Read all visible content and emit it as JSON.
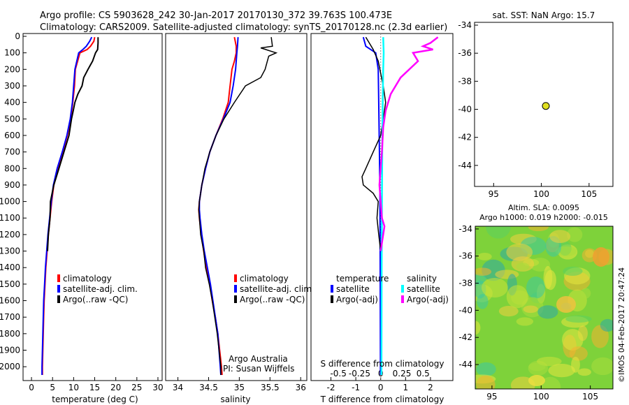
{
  "header": {
    "line1": "Argo profile: CS 5903628_242 30-Jan-2017 20170130_372 39.763S 100.473E",
    "line2": "Climatology: CARS2009. Satellite-adjusted climatology: synTS_20170128.nc (2.3d earlier)"
  },
  "colors": {
    "climatology": "#ff0000",
    "satellite_adj": "#0000ff",
    "argo": "#000000",
    "salinity_satellite": "#00ffff",
    "salinity_argo": "#ff00ff",
    "marker": "#e0e020"
  },
  "depth_ticks": [
    "0",
    "100",
    "200",
    "300",
    "400",
    "500",
    "600",
    "700",
    "800",
    "900",
    "1000",
    "1100",
    "1200",
    "1300",
    "1400",
    "1500",
    "1600",
    "1700",
    "1800",
    "1900",
    "2000"
  ],
  "chart_data": [
    {
      "id": "temperature",
      "type": "line",
      "xlabel": "temperature (deg C)",
      "ylabel": "",
      "xlim": [
        -2,
        31
      ],
      "ylim": [
        0,
        2070
      ],
      "x_ticks": [
        "0",
        "5",
        "10",
        "15",
        "20",
        "25",
        "30"
      ],
      "legend": [
        "climatology",
        "satellite-adj. clim.",
        "Argo(..raw -QC)"
      ],
      "legend_position": "bottom-right",
      "series": [
        {
          "name": "climatology",
          "points": [
            [
              15,
              5
            ],
            [
              14.8,
              30
            ],
            [
              14,
              60
            ],
            [
              13.2,
              80
            ],
            [
              11.5,
              100
            ],
            [
              10.4,
              200
            ],
            [
              10.2,
              300
            ],
            [
              9.8,
              400
            ],
            [
              9.3,
              500
            ],
            [
              8.5,
              600
            ],
            [
              7.4,
              700
            ],
            [
              6.2,
              800
            ],
            [
              5.3,
              900
            ],
            [
              4.8,
              1000
            ],
            [
              4.4,
              1100
            ],
            [
              4.0,
              1200
            ],
            [
              3.7,
              1300
            ],
            [
              3.4,
              1400
            ],
            [
              3.2,
              1500
            ],
            [
              3.0,
              1600
            ],
            [
              2.9,
              1700
            ],
            [
              2.8,
              1800
            ],
            [
              2.7,
              1900
            ],
            [
              2.6,
              2000
            ],
            [
              2.6,
              2050
            ]
          ]
        },
        {
          "name": "satellite-adj. clim.",
          "points": [
            [
              14.3,
              5
            ],
            [
              13.8,
              30
            ],
            [
              13.0,
              60
            ],
            [
              12.2,
              80
            ],
            [
              11.2,
              100
            ],
            [
              10.3,
              200
            ],
            [
              10.0,
              300
            ],
            [
              9.7,
              400
            ],
            [
              9.2,
              500
            ],
            [
              8.4,
              600
            ],
            [
              7.3,
              700
            ],
            [
              6.1,
              800
            ],
            [
              5.2,
              900
            ],
            [
              4.7,
              1000
            ],
            [
              4.3,
              1100
            ],
            [
              3.9,
              1200
            ],
            [
              3.6,
              1300
            ],
            [
              3.3,
              1400
            ],
            [
              3.1,
              1500
            ],
            [
              2.9,
              1600
            ],
            [
              2.8,
              1700
            ],
            [
              2.7,
              1800
            ],
            [
              2.6,
              1900
            ],
            [
              2.5,
              2000
            ],
            [
              2.5,
              2050
            ]
          ]
        },
        {
          "name": "Argo(..raw -QC)",
          "points": [
            [
              15.8,
              5
            ],
            [
              15.8,
              40
            ],
            [
              15.7,
              80
            ],
            [
              15.2,
              100
            ],
            [
              14.5,
              150
            ],
            [
              13.4,
              200
            ],
            [
              12.4,
              250
            ],
            [
              12.0,
              300
            ],
            [
              11.0,
              350
            ],
            [
              10.3,
              400
            ],
            [
              9.9,
              450
            ],
            [
              9.5,
              500
            ],
            [
              8.9,
              600
            ],
            [
              7.7,
              700
            ],
            [
              6.5,
              800
            ],
            [
              5.3,
              900
            ],
            [
              4.5,
              1000
            ],
            [
              4.4,
              1100
            ],
            [
              4.0,
              1200
            ],
            [
              3.8,
              1300
            ]
          ]
        }
      ]
    },
    {
      "id": "salinity",
      "type": "line",
      "xlabel": "salinity",
      "ylabel": "",
      "xlim": [
        33.8,
        36.1
      ],
      "ylim": [
        0,
        2070
      ],
      "x_ticks": [
        "34",
        "34.5",
        "35",
        "35.5",
        "36"
      ],
      "legend": [
        "climatology",
        "satellite-adj. clim.",
        "Argo(..raw -QC)"
      ],
      "legend_position": "bottom-right",
      "annotation_line1": "Argo Australia",
      "annotation_line2": "PI: Susan Wijffels",
      "series": [
        {
          "name": "climatology",
          "points": [
            [
              34.92,
              5
            ],
            [
              34.95,
              60
            ],
            [
              34.95,
              100
            ],
            [
              34.92,
              150
            ],
            [
              34.88,
              200
            ],
            [
              34.85,
              300
            ],
            [
              34.82,
              400
            ],
            [
              34.73,
              500
            ],
            [
              34.62,
              600
            ],
            [
              34.52,
              700
            ],
            [
              34.45,
              800
            ],
            [
              34.39,
              900
            ],
            [
              34.35,
              1000
            ],
            [
              34.34,
              1050
            ],
            [
              34.35,
              1100
            ],
            [
              34.38,
              1200
            ],
            [
              34.42,
              1300
            ],
            [
              34.46,
              1400
            ],
            [
              34.52,
              1500
            ],
            [
              34.56,
              1600
            ],
            [
              34.61,
              1700
            ],
            [
              34.65,
              1800
            ],
            [
              34.68,
              1900
            ],
            [
              34.71,
              2000
            ],
            [
              34.72,
              2050
            ]
          ]
        },
        {
          "name": "satellite-adj. clim.",
          "points": [
            [
              34.98,
              5
            ],
            [
              34.97,
              60
            ],
            [
              34.96,
              100
            ],
            [
              34.95,
              150
            ],
            [
              34.94,
              200
            ],
            [
              34.9,
              300
            ],
            [
              34.85,
              400
            ],
            [
              34.74,
              500
            ],
            [
              34.62,
              600
            ],
            [
              34.52,
              700
            ],
            [
              34.45,
              800
            ],
            [
              34.39,
              900
            ],
            [
              34.35,
              1000
            ],
            [
              34.35,
              1050
            ],
            [
              34.36,
              1100
            ],
            [
              34.39,
              1200
            ],
            [
              34.43,
              1300
            ],
            [
              34.48,
              1400
            ],
            [
              34.53,
              1500
            ],
            [
              34.57,
              1600
            ],
            [
              34.61,
              1700
            ],
            [
              34.65,
              1800
            ],
            [
              34.67,
              1900
            ],
            [
              34.69,
              2000
            ],
            [
              34.7,
              2050
            ]
          ]
        },
        {
          "name": "Argo(..raw -QC)",
          "points": [
            [
              35.52,
              5
            ],
            [
              35.54,
              60
            ],
            [
              35.35,
              70
            ],
            [
              35.6,
              100
            ],
            [
              35.48,
              120
            ],
            [
              35.42,
              200
            ],
            [
              35.35,
              250
            ],
            [
              35.1,
              300
            ],
            [
              34.92,
              400
            ],
            [
              34.75,
              500
            ],
            [
              34.62,
              600
            ],
            [
              34.52,
              700
            ],
            [
              34.44,
              800
            ],
            [
              34.39,
              900
            ],
            [
              34.35,
              1000
            ],
            [
              34.34,
              1050
            ],
            [
              34.35,
              1100
            ],
            [
              34.37,
              1200
            ],
            [
              34.42,
              1300
            ],
            [
              34.45,
              1400
            ],
            [
              34.51,
              1500
            ],
            [
              34.56,
              1600
            ],
            [
              34.6,
              1700
            ],
            [
              34.64,
              1800
            ],
            [
              34.67,
              1900
            ],
            [
              34.7,
              2000
            ],
            [
              34.7,
              2050
            ]
          ]
        }
      ]
    },
    {
      "id": "difference",
      "type": "line",
      "xlabel": "T difference from climatology",
      "x2label": "S difference from climatology",
      "ylabel": "",
      "xlim": [
        -2.8,
        2.9
      ],
      "ylim": [
        0,
        2070
      ],
      "x_ticks": [
        "-2",
        "-1",
        "0",
        "1",
        "2"
      ],
      "x2_ticks": [
        "-0.5",
        "-0.25",
        "0",
        "0.25",
        "0.5"
      ],
      "legend_temperature_header": "temperature",
      "legend_salinity_header": "salinity",
      "legend_satellite": "satellite",
      "legend_argo": "Argo(-adj)",
      "legend_position": "bottom",
      "series": [
        {
          "name": "temperature satellite",
          "points": [
            [
              -0.7,
              5
            ],
            [
              -0.6,
              60
            ],
            [
              -0.2,
              100
            ],
            [
              -0.1,
              200
            ],
            [
              -0.08,
              400
            ],
            [
              -0.05,
              700
            ],
            [
              -0.03,
              1000
            ],
            [
              -0.02,
              1400
            ],
            [
              -0.01,
              2050
            ]
          ]
        },
        {
          "name": "temperature Argo(-adj)",
          "points": [
            [
              -0.6,
              5
            ],
            [
              -0.3,
              80
            ],
            [
              -0.1,
              150
            ],
            [
              0.1,
              300
            ],
            [
              0.2,
              400
            ],
            [
              0.1,
              500
            ],
            [
              0.0,
              600
            ],
            [
              -0.3,
              700
            ],
            [
              -0.6,
              800
            ],
            [
              -0.75,
              850
            ],
            [
              -0.7,
              900
            ],
            [
              -0.3,
              950
            ],
            [
              -0.1,
              1000
            ],
            [
              -0.15,
              1100
            ],
            [
              -0.08,
              1200
            ],
            [
              0.0,
              1300
            ]
          ]
        },
        {
          "name": "salinity satellite",
          "points": [
            [
              0.1,
              5
            ],
            [
              0.12,
              100
            ],
            [
              0.1,
              200
            ],
            [
              0.08,
              400
            ],
            [
              0.06,
              700
            ],
            [
              0.05,
              1000
            ],
            [
              0.04,
              1400
            ],
            [
              0.03,
              2050
            ]
          ]
        },
        {
          "name": "salinity Argo(-adj)",
          "points": [
            [
              2.3,
              5
            ],
            [
              2.0,
              40
            ],
            [
              1.7,
              60
            ],
            [
              2.1,
              80
            ],
            [
              1.3,
              100
            ],
            [
              1.5,
              150
            ],
            [
              0.8,
              250
            ],
            [
              0.4,
              350
            ],
            [
              0.2,
              450
            ],
            [
              0.1,
              550
            ],
            [
              0.05,
              700
            ],
            [
              -0.05,
              900
            ],
            [
              0.05,
              1100
            ],
            [
              0.15,
              1150
            ],
            [
              0.05,
              1250
            ],
            [
              0.0,
              1300
            ]
          ]
        }
      ]
    },
    {
      "id": "sst_map",
      "type": "scatter",
      "title": "sat. SST: NaN Argo: 15.7",
      "xlim": [
        93,
        107.5
      ],
      "ylim": [
        -45.5,
        -33.8
      ],
      "x_ticks": [
        "95",
        "100",
        "105"
      ],
      "y_ticks": [
        "-34",
        "-36",
        "-38",
        "-40",
        "-42",
        "-44"
      ],
      "points": [
        {
          "x": 100.47,
          "y": -39.76
        }
      ]
    },
    {
      "id": "sla_map",
      "type": "heatmap",
      "title_line1": "Altim. SLA: 0.0095",
      "title_line2": "Argo h1000: 0.019 h2000: -0.015",
      "xlim": [
        93.3,
        107.3
      ],
      "ylim": [
        -45.8,
        -33.8
      ],
      "x_ticks": [
        "95",
        "100",
        "105"
      ],
      "y_ticks": [
        "-34",
        "-36",
        "-38",
        "-40",
        "-42",
        "-44"
      ],
      "value_range": "green field with yellow-orange highs and cyan-blue lows"
    }
  ],
  "credit": "©IMOS 04-Feb-2017 20:47:24"
}
